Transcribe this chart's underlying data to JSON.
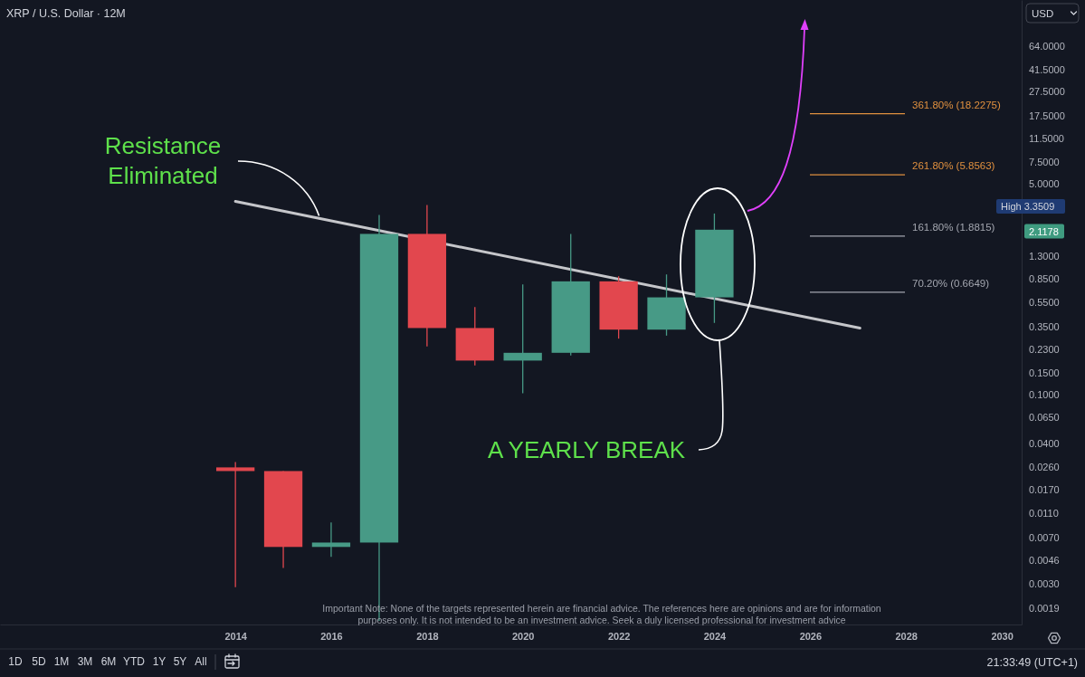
{
  "chart_data": {
    "type": "candlestick",
    "title": "XRP / U.S. Dollar · 12M",
    "log": true,
    "xlim": [
      "2009-02",
      "2030-06"
    ],
    "xticks": [
      "2014",
      "2016",
      "2018",
      "2020",
      "2022",
      "2024",
      "2026",
      "2028",
      "2030"
    ],
    "ylim": [
      0.0014,
      150
    ],
    "yticks": [
      {
        "value": 0.0019,
        "label": "0.0019"
      },
      {
        "value": 0.003,
        "label": "0.0030"
      },
      {
        "value": 0.0046,
        "label": "0.0046"
      },
      {
        "value": 0.007,
        "label": "0.0070"
      },
      {
        "value": 0.011,
        "label": "0.0110"
      },
      {
        "value": 0.017,
        "label": "0.0170"
      },
      {
        "value": 0.026,
        "label": "0.0260"
      },
      {
        "value": 0.04,
        "label": "0.0400"
      },
      {
        "value": 0.065,
        "label": "0.0650"
      },
      {
        "value": 0.1,
        "label": "0.1000"
      },
      {
        "value": 0.15,
        "label": "0.1500"
      },
      {
        "value": 0.23,
        "label": "0.2300"
      },
      {
        "value": 0.35,
        "label": "0.3500"
      },
      {
        "value": 0.55,
        "label": "0.5500"
      },
      {
        "value": 0.85,
        "label": "0.8500"
      },
      {
        "value": 1.3,
        "label": "1.3000"
      },
      {
        "value": 5,
        "label": "5.0000"
      },
      {
        "value": 7.5,
        "label": "7.5000"
      },
      {
        "value": 11.5,
        "label": "11.5000"
      },
      {
        "value": 17.5,
        "label": "17.5000"
      },
      {
        "value": 27.5,
        "label": "27.5000"
      },
      {
        "value": 41.5,
        "label": "41.5000"
      },
      {
        "value": 64,
        "label": "64.0000"
      }
    ],
    "series": [
      {
        "type": "line",
        "x": [
          "2014",
          "2027-01-15"
        ],
        "values": [
          3.58,
          0.342
        ],
        "color": "#c5c6ca"
      },
      {
        "x": [
          "2014",
          "2015",
          "2016",
          "2017",
          "2018",
          "2019",
          "2020",
          "2021",
          "2022",
          "2023",
          "2024"
        ],
        "ohlc": [
          [
            0.0258,
            0.0285,
            0.0028,
            0.0241
          ],
          [
            0.0241,
            0.0241,
            0.004,
            0.0059
          ],
          [
            0.0059,
            0.0093,
            0.0049,
            0.0064
          ],
          [
            0.0064,
            2.78,
            0.0015,
            1.96
          ],
          [
            1.96,
            3.3509,
            0.243,
            0.342
          ],
          [
            0.342,
            0.505,
            0.171,
            0.187
          ],
          [
            0.187,
            0.769,
            0.102,
            0.216
          ],
          [
            0.216,
            1.96,
            0.206,
            0.813
          ],
          [
            0.813,
            0.894,
            0.281,
            0.332
          ],
          [
            0.332,
            0.924,
            0.297,
            0.604
          ],
          [
            0.604,
            2.86,
            0.376,
            2.1178
          ]
        ],
        "colors": [
          "#e2474e",
          "#e2474e",
          "#479a86",
          "#479a86",
          "#e2474e",
          "#e2474e",
          "#479a86",
          "#479a86",
          "#e2474e",
          "#479a86",
          "#479a86"
        ]
      }
    ],
    "ref_lines": [
      {
        "axis": "y",
        "value": 18.2275,
        "label": "361.80% (18.2275)",
        "color": "#e0903f"
      },
      {
        "axis": "y",
        "value": 5.8563,
        "label": "261.80% (5.8563)",
        "color": "#e0903f"
      },
      {
        "axis": "y",
        "value": 1.8815,
        "label": "161.80% (1.8815)",
        "color": "#a3a6af"
      },
      {
        "axis": "y",
        "value": 0.6649,
        "label": "70.20% (0.6649)",
        "color": "#a3a6af"
      }
    ],
    "annotations": [
      {
        "text": "Resistance Eliminated",
        "x": "2015-10",
        "y": 2.74
      },
      "A YEARLY BREAK",
      "Important Note: None of the targets represented herein are financial advice. The references here are opinions and are for information purposes only. It is not intended to be an investment advice. Seek a duly licensed professional for investment advice",
      "High 3.3509",
      "2.1178",
      "USD",
      "1D",
      "5D",
      "1M",
      "3M",
      "6M",
      "YTD",
      "1Y",
      "5Y",
      "All",
      "21:33:49 (UTC+1)"
    ]
  }
}
